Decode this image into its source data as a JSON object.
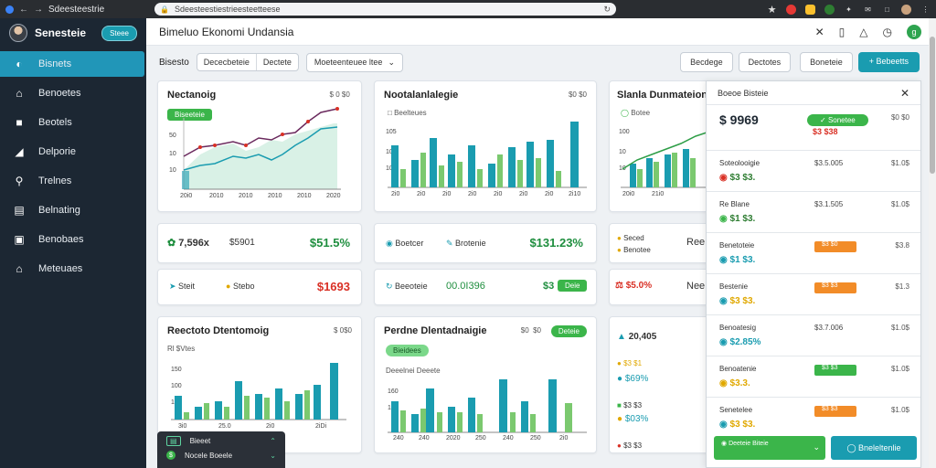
{
  "browser": {
    "tab_title": "Sdeesteestrie",
    "url": "Sdeesteestiestrieesteetteese",
    "extensions": [
      {
        "icon": "star-icon",
        "color": "#444444"
      },
      {
        "icon": "record-icon",
        "color": "#e53935"
      },
      {
        "icon": "bookmark-icon",
        "color": "#fbc02d"
      },
      {
        "icon": "grammar-icon",
        "color": "#2e7d32"
      },
      {
        "icon": "feather-icon",
        "color": "#555555"
      },
      {
        "icon": "mail-icon",
        "color": "#555555"
      },
      {
        "icon": "window-icon",
        "color": "#555555"
      }
    ]
  },
  "sidebar": {
    "brand": "Senesteie",
    "brand_pill": "Steee",
    "items": [
      {
        "label": "Bisnets",
        "icon": "dashboard-icon",
        "active": true
      },
      {
        "label": "Benoetes",
        "icon": "home-icon"
      },
      {
        "label": "Beotels",
        "icon": "briefcase-icon"
      },
      {
        "label": "Delporie",
        "icon": "chart-icon"
      },
      {
        "label": "Trelnes",
        "icon": "search-icon"
      },
      {
        "label": "Belnating",
        "icon": "document-icon"
      },
      {
        "label": "Benobaes",
        "icon": "book-icon"
      },
      {
        "label": "Meteuaes",
        "icon": "house-user-icon"
      }
    ]
  },
  "header": {
    "title": "Bimeluo Ekonomi Undansia"
  },
  "toolbar": {
    "label": "Bisesto",
    "group": [
      "Dececbeteie",
      "Dectete"
    ],
    "select": "Moeteenteuee ltee",
    "right_buttons": [
      "Becdege",
      "Dectotes",
      "Boneteie"
    ],
    "primary": "Bebeetts"
  },
  "cards": {
    "c1": {
      "title": "Nectanoig",
      "meta": "$ 0 $0 ",
      "chip": "Biseeteie",
      "yticks": [
        "50",
        "10",
        "10"
      ],
      "xticks": [
        "20i0",
        "2010",
        "2010",
        "2010",
        "2010",
        "2020"
      ]
    },
    "c2": {
      "title": "Nootalanlalegie",
      "meta": "$0 $0",
      "sub": "Beelteues",
      "yticks": [
        "105",
        "10",
        "10"
      ],
      "xticks": [
        "2i0",
        "2i0",
        "2i0",
        "2i0",
        "2i0",
        "2i0",
        "2i0",
        "2i10"
      ]
    },
    "c3": {
      "title": "Slanla Dunmateion",
      "chip": "Botee",
      "yticks": [
        "100",
        "10",
        "10"
      ],
      "xticks": [
        "20i0",
        "21i0"
      ]
    },
    "c4": {
      "title": "Reectoto Dtentomoig",
      "meta": "$ 0$0",
      "sub": "Rl $Vtes",
      "yticks": [
        "150",
        "100",
        "10"
      ],
      "xticks": [
        "3i0",
        "25.0",
        "2i0",
        "2iDi"
      ]
    },
    "c5": {
      "title": "Perdne Dlentadnaigie",
      "meta": "$0  $0",
      "chip": "Deteie",
      "chip2": "Bieidees",
      "sub": "Deeelnei Deeete",
      "yticks": [
        "160",
        "10"
      ],
      "xticks": [
        "240",
        "240",
        "2020",
        "250",
        "240",
        "250",
        "2i0"
      ]
    }
  },
  "stats": {
    "s1": {
      "left": "7,596x",
      "mid": "$5901",
      "big": "$51.5%"
    },
    "s2": {
      "l1": "Boetcer",
      "l2": "Brotenie",
      "big": "$131.23%"
    },
    "s3": {
      "l1": "Seced",
      "l2": "Benotee",
      "right": "Ree"
    },
    "s4": {
      "l1": "Steit",
      "l2": "Stebo",
      "big": "$1693"
    },
    "s5": {
      "l1": "Beeoteie",
      "l2": "00.0I396",
      "right": "$3",
      "chip": "Deie"
    },
    "s6": {
      "l1": "$5.0%",
      "right": "Nee"
    },
    "s7": {
      "l1": "20,405",
      "v2": "$69%",
      "v3": "$03%"
    }
  },
  "panel": {
    "title": "Boeoe Bisteie",
    "top_value": "$ 9969",
    "top_sub": "$3 $38",
    "top_chip": "Sonetee",
    "top_right": "$0 $0",
    "rows": [
      {
        "name": "Soteolooigie",
        "val": "$3 $3.",
        "mid": "$3.5.005",
        "right": "$1.0$",
        "color": "#2e7d32"
      },
      {
        "name": "Re Blane",
        "val": "$1 $3.",
        "mid": "$3.1.505",
        "right": "$1.0$",
        "color": "#2e7d32"
      },
      {
        "name": "Benetoteie",
        "val": "$1 $3.",
        "tag": "$3 $0",
        "tag_color": "#f28c28",
        "right": "$3.8",
        "color": "#1a9cb0"
      },
      {
        "name": "Bestenie",
        "val": "$3 $3.",
        "tag": "$3 $3",
        "tag_color": "#f28c28",
        "right": "$1.3",
        "color": "#1a9cb0"
      },
      {
        "name": "Benoatesig",
        "val": "$2.85%",
        "mid": "$3.7.006",
        "right": "$1.0$",
        "color": "#1a9cb0"
      },
      {
        "name": "Benoatenie",
        "val": "$3.3.",
        "tag": "$3 $3",
        "tag_color": "#3bb54a",
        "right": "$1.0$",
        "color": "#e0a800"
      },
      {
        "name": "Senetelee",
        "val": "$3 $3.",
        "tag": "$3 $3",
        "tag_color": "#f28c28",
        "right": "$1.0$",
        "color": "#e0a800"
      }
    ],
    "foot_green": "Deeteie Biteie",
    "foot_teal": "Bneleltenlie"
  },
  "popup": {
    "r1": "Bieeet",
    "r2": "Nocele Boeele"
  },
  "colors": {
    "teal": "#1a9cb0",
    "green": "#3bb54a",
    "sidebar": "#1c2733",
    "red": "#d93025",
    "orange": "#f28c28"
  }
}
